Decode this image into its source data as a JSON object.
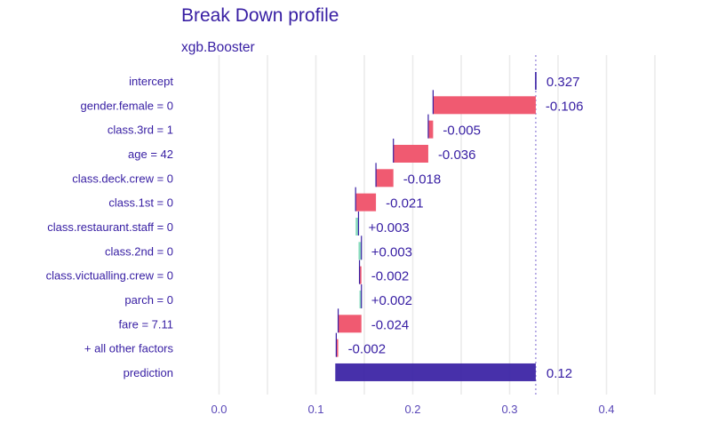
{
  "header": {
    "title": "Break Down profile",
    "subtitle": "xgb.Booster"
  },
  "colors": {
    "text": "#371ea3",
    "negative": "#f05a71",
    "positive": "#8bdcbe",
    "prediction": "#371ea3",
    "connector": "#371ea3",
    "grid": "#ebebeb"
  },
  "chart_data": {
    "type": "waterfall",
    "title": "Break Down profile",
    "subtitle": "xgb.Booster",
    "xlabel": "",
    "ylabel": "",
    "xlim": [
      0.0,
      0.45
    ],
    "x_ticks": [
      0.0,
      0.1,
      0.2,
      0.3,
      0.4
    ],
    "x_tick_labels": [
      "0.0",
      "0.1",
      "0.2",
      "0.3",
      "0.4"
    ],
    "grid": true,
    "intercept": 0.327,
    "prediction": 0.12,
    "rows": [
      {
        "variable": "intercept",
        "contribution": 0.327,
        "label": "0.327",
        "start": 0.327,
        "end": 0.327,
        "kind": "intercept"
      },
      {
        "variable": "gender.female = 0",
        "contribution": -0.106,
        "label": "-0.106",
        "start": 0.327,
        "end": 0.221,
        "kind": "negative"
      },
      {
        "variable": "class.3rd = 1",
        "contribution": -0.005,
        "label": "-0.005",
        "start": 0.221,
        "end": 0.216,
        "kind": "negative"
      },
      {
        "variable": "age = 42",
        "contribution": -0.036,
        "label": "-0.036",
        "start": 0.216,
        "end": 0.18,
        "kind": "negative"
      },
      {
        "variable": "class.deck.crew = 0",
        "contribution": -0.018,
        "label": "-0.018",
        "start": 0.18,
        "end": 0.162,
        "kind": "negative"
      },
      {
        "variable": "class.1st = 0",
        "contribution": -0.021,
        "label": "-0.021",
        "start": 0.162,
        "end": 0.141,
        "kind": "negative"
      },
      {
        "variable": "class.restaurant.staff = 0",
        "contribution": 0.003,
        "label": "+0.003",
        "start": 0.141,
        "end": 0.144,
        "kind": "positive"
      },
      {
        "variable": "class.2nd = 0",
        "contribution": 0.003,
        "label": "+0.003",
        "start": 0.144,
        "end": 0.147,
        "kind": "positive"
      },
      {
        "variable": "class.victualling.crew = 0",
        "contribution": -0.002,
        "label": "-0.002",
        "start": 0.147,
        "end": 0.145,
        "kind": "negative"
      },
      {
        "variable": "parch = 0",
        "contribution": 0.002,
        "label": "+0.002",
        "start": 0.145,
        "end": 0.147,
        "kind": "positive"
      },
      {
        "variable": "fare = 7.11",
        "contribution": -0.024,
        "label": "-0.024",
        "start": 0.147,
        "end": 0.123,
        "kind": "negative"
      },
      {
        "variable": "+ all other factors",
        "contribution": -0.002,
        "label": "-0.002",
        "start": 0.123,
        "end": 0.121,
        "kind": "negative"
      },
      {
        "variable": "prediction",
        "contribution": 0.12,
        "label": "0.12",
        "start": 0.327,
        "end": 0.12,
        "kind": "prediction"
      }
    ]
  }
}
